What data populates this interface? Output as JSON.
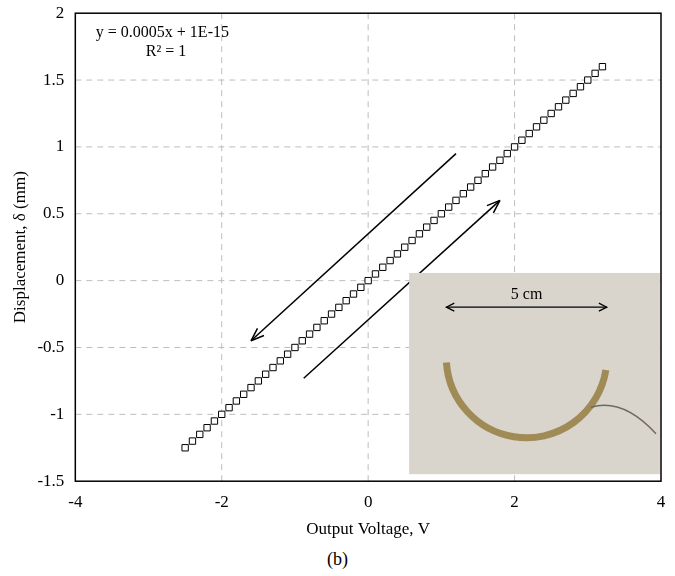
{
  "chart_data": {
    "type": "scatter",
    "xlabel": "Output Voltage, V",
    "ylabel": "Displacement, δ (mm)",
    "annotations": [
      "y = 0.0005x + 1E-15",
      "R² = 1"
    ],
    "caption": "(b)",
    "inset_label": "5 cm",
    "x": [
      -2.5,
      -2.4,
      -2.3,
      -2.2,
      -2.1,
      -2.0,
      -1.9,
      -1.8,
      -1.7,
      -1.6,
      -1.5,
      -1.4,
      -1.3,
      -1.2,
      -1.1,
      -1.0,
      -0.9,
      -0.8,
      -0.7,
      -0.6,
      -0.5,
      -0.4,
      -0.3,
      -0.2,
      -0.1,
      0.0,
      0.1,
      0.2,
      0.3,
      0.4,
      0.5,
      0.6,
      0.7,
      0.8,
      0.9,
      1.0,
      1.1,
      1.2,
      1.3,
      1.4,
      1.5,
      1.6,
      1.7,
      1.8,
      1.9,
      2.0,
      2.1,
      2.2,
      2.3,
      2.4,
      2.5,
      2.6,
      2.7,
      2.8,
      2.9,
      3.0,
      3.1,
      3.2
    ],
    "values": [
      -1.25,
      -1.2,
      -1.15,
      -1.1,
      -1.05,
      -1.0,
      -0.95,
      -0.9,
      -0.85,
      -0.8,
      -0.75,
      -0.7,
      -0.65,
      -0.6,
      -0.55,
      -0.5,
      -0.45,
      -0.4,
      -0.35,
      -0.3,
      -0.25,
      -0.2,
      -0.15,
      -0.1,
      -0.05,
      0.0,
      0.05,
      0.1,
      0.15,
      0.2,
      0.25,
      0.3,
      0.35,
      0.4,
      0.45,
      0.5,
      0.55,
      0.6,
      0.65,
      0.7,
      0.75,
      0.8,
      0.85,
      0.9,
      0.95,
      1.0,
      1.05,
      1.1,
      1.15,
      1.2,
      1.25,
      1.3,
      1.35,
      1.4,
      1.45,
      1.5,
      1.55,
      1.6
    ],
    "color": "#000000",
    "marker": "square",
    "xlim": [
      -4,
      4
    ],
    "xticks": [
      -4,
      -2,
      0,
      2,
      4
    ],
    "ylim": [
      -1.5,
      2
    ],
    "yticks": [
      -1.5,
      -1,
      -0.5,
      0,
      0.5,
      1,
      1.5,
      2
    ],
    "grid": true
  }
}
